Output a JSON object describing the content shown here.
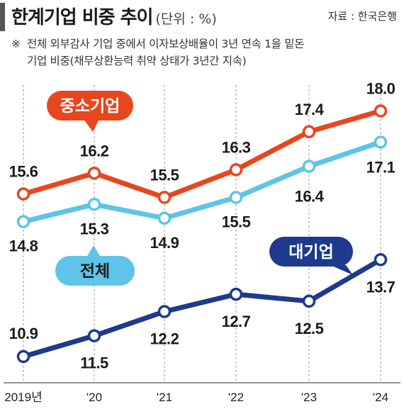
{
  "header": {
    "title": "한계기업 비중 추이",
    "unit": "(단위 : %)",
    "source": "자료 : 한국은행",
    "note_mark": "※",
    "note_line1": "전체 외부감사 기업 중에서 이자보상배율이 3년 연속 1을 밑돈",
    "note_line2": "기업 비중(채무상환능력 취약 상태가 3년간 지속)"
  },
  "chart_data": {
    "type": "line",
    "categories": [
      "2019년",
      "'20",
      "'21",
      "'22",
      "'23",
      "'24"
    ],
    "series": [
      {
        "name": "중소기업",
        "color": "#e8461e",
        "values": [
          15.6,
          16.2,
          15.5,
          16.3,
          17.4,
          18.0
        ]
      },
      {
        "name": "전체",
        "color": "#5ec4e8",
        "values": [
          14.8,
          15.3,
          14.9,
          15.5,
          16.4,
          17.1
        ]
      },
      {
        "name": "대기업",
        "color": "#1e3a8c",
        "values": [
          10.9,
          11.5,
          12.2,
          12.7,
          12.5,
          13.7
        ]
      }
    ],
    "value_labels": {
      "중소기업": [
        "15.6",
        "16.2",
        "15.5",
        "16.3",
        "17.4",
        "18.0"
      ],
      "전체": [
        "14.8",
        "15.3",
        "14.9",
        "15.5",
        "16.4",
        "17.1"
      ],
      "대기업": [
        "10.9",
        "11.5",
        "12.2",
        "12.7",
        "12.5",
        "13.7"
      ]
    },
    "grid": "vertical dashed",
    "legend": "callout bubbles"
  }
}
